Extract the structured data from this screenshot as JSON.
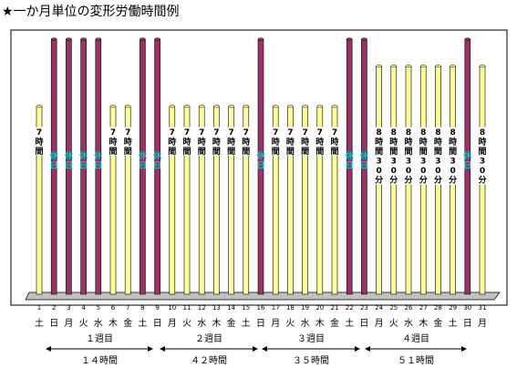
{
  "chart_data": {
    "type": "bar",
    "title": "★一か月単位の変形労働時間例",
    "categories": [
      "1",
      "2",
      "3",
      "4",
      "5",
      "6",
      "7",
      "8",
      "9",
      "10",
      "11",
      "12",
      "13",
      "14",
      "15",
      "16",
      "17",
      "18",
      "19",
      "20",
      "21",
      "22",
      "23",
      "24",
      "25",
      "26",
      "27",
      "28",
      "29",
      "30",
      "31"
    ],
    "weekdays": [
      "土",
      "日",
      "月",
      "火",
      "水",
      "木",
      "金",
      "土",
      "日",
      "月",
      "火",
      "水",
      "木",
      "金",
      "土",
      "日",
      "月",
      "火",
      "水",
      "木",
      "金",
      "土",
      "日",
      "月",
      "火",
      "水",
      "木",
      "金",
      "土",
      "日",
      "月"
    ],
    "values": [
      7,
      0,
      0,
      0,
      0,
      7,
      7,
      0,
      0,
      7,
      7,
      7,
      7,
      7,
      7,
      0,
      7,
      7,
      7,
      7,
      7,
      0,
      0,
      8.5,
      8.5,
      8.5,
      8.5,
      8.5,
      8.5,
      0,
      8.5
    ],
    "ylim": [
      0,
      9.5
    ],
    "bar_labels": [
      "7時間",
      "休日",
      "休日",
      "休日",
      "休日",
      "7時間",
      "7時間",
      "休日",
      "休日",
      "7時間",
      "7時間",
      "7時間",
      "7時間",
      "7時間",
      "7時間",
      "休日",
      "7時間",
      "7時間",
      "7時間",
      "7時間",
      "7時間",
      "休日",
      "休日",
      "8時間30分",
      "8時間30分",
      "8時間30分",
      "8時間30分",
      "8時間30分",
      "8時間30分",
      "休日",
      "8時間30分"
    ],
    "weeks": [
      {
        "label": "１週目",
        "hours": "１４時間"
      },
      {
        "label": "２週目",
        "hours": "４２時間"
      },
      {
        "label": "３週目",
        "hours": "３５時間"
      },
      {
        "label": "４週目",
        "hours": "５１時間"
      }
    ],
    "colors": {
      "work": "#ffff99",
      "holiday": "#993366",
      "holiday_label": "#00c0c0",
      "label_text": "#000000",
      "frame": "#000000",
      "floor": "#c0c0c0"
    }
  }
}
